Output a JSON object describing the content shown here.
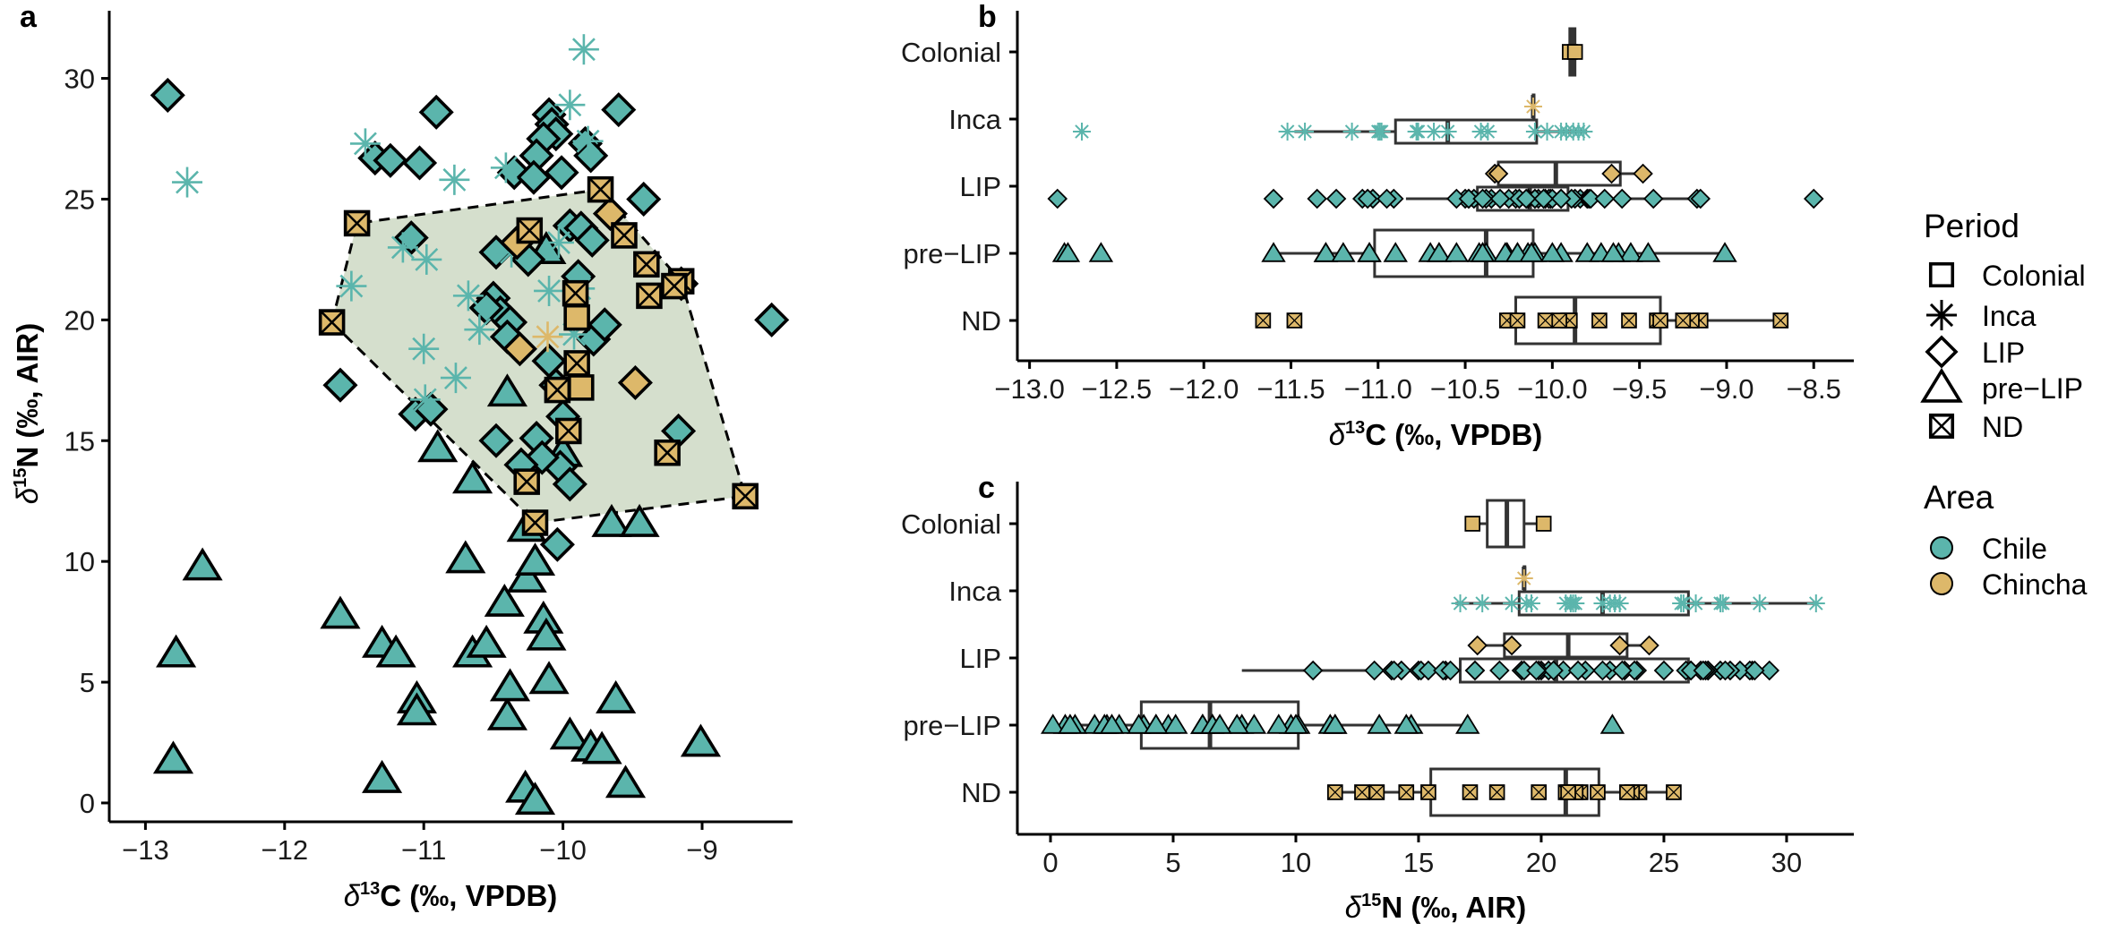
{
  "panel_labels": {
    "a": "a",
    "b": "b",
    "c": "c"
  },
  "colors": {
    "Chile": "#5BB5AC",
    "Chincha": "#DDB86A",
    "hull_fill": "#D5DFCD",
    "box_line": "#333333"
  },
  "legend": {
    "period_title": "Period",
    "period_items": [
      {
        "label": "Colonial",
        "shape": "square"
      },
      {
        "label": "Inca",
        "shape": "asterisk"
      },
      {
        "label": "LIP",
        "shape": "diamond"
      },
      {
        "label": "pre−LIP",
        "shape": "triangle"
      },
      {
        "label": "ND",
        "shape": "square-x"
      }
    ],
    "area_title": "Area",
    "area_items": [
      {
        "label": "Chile",
        "color": "#5BB5AC"
      },
      {
        "label": "Chincha",
        "color": "#DDB86A"
      }
    ]
  },
  "chart_data": [
    {
      "panel": "a",
      "type": "scatter",
      "xlabel": {
        "delta": "δ",
        "iso": "13",
        "rest": "C (‰, VPDB)"
      },
      "ylabel": {
        "delta": "δ",
        "iso": "15",
        "rest": "N (‰, AIR)"
      },
      "xlim": [
        -13.26,
        -8.35
      ],
      "ylim": [
        -0.78,
        32.8
      ],
      "xticks": [
        -13,
        -12,
        -11,
        -10,
        -9
      ],
      "xtick_labels": [
        "−13",
        "−12",
        "−11",
        "−10",
        "−9"
      ],
      "yticks": [
        0,
        5,
        10,
        15,
        20,
        25,
        30
      ],
      "ytick_labels": [
        "0",
        "5",
        "10",
        "15",
        "20",
        "25",
        "30"
      ],
      "grid": false,
      "overlay": "dashed convex hull around Chincha samples",
      "series": [
        {
          "period": "pre-LIP",
          "area": "Chile",
          "points": [
            [
              -12.8,
              1.8
            ],
            [
              -12.78,
              6.2
            ],
            [
              -12.59,
              9.8
            ],
            [
              -11.6,
              7.8
            ],
            [
              -11.3,
              1.0
            ],
            [
              -11.3,
              6.6
            ],
            [
              -11.2,
              6.2
            ],
            [
              -11.05,
              4.3
            ],
            [
              -11.05,
              3.8
            ],
            [
              -10.9,
              14.7
            ],
            [
              -10.65,
              13.4
            ],
            [
              -10.7,
              10.1
            ],
            [
              -10.65,
              6.2
            ],
            [
              -10.55,
              6.6
            ],
            [
              -10.4,
              3.6
            ],
            [
              -10.38,
              4.8
            ],
            [
              -10.42,
              8.3
            ],
            [
              -10.26,
              9.3
            ],
            [
              -10.26,
              11.4
            ],
            [
              -10.2,
              10.0
            ],
            [
              -10.14,
              7.6
            ],
            [
              -10.12,
              6.9
            ],
            [
              -10.1,
              5.1
            ],
            [
              -10.27,
              0.6
            ],
            [
              -10.2,
              0.1
            ],
            [
              -9.95,
              2.8
            ],
            [
              -9.8,
              2.3
            ],
            [
              -9.72,
              2.2
            ],
            [
              -9.62,
              4.3
            ],
            [
              -9.55,
              0.8
            ],
            [
              -9.01,
              2.5
            ],
            [
              -9.65,
              11.6
            ],
            [
              -9.45,
              11.6
            ],
            [
              -10.12,
              22.9
            ],
            [
              -10.4,
              17.0
            ],
            [
              -10.0,
              14.5
            ]
          ]
        },
        {
          "period": "LIP",
          "area": "Chile",
          "points": [
            [
              -12.84,
              29.3
            ],
            [
              -10.91,
              28.6
            ],
            [
              -10.1,
              28.5
            ],
            [
              -10.08,
              28.1
            ],
            [
              -10.05,
              27.7
            ],
            [
              -9.84,
              27.3
            ],
            [
              -9.8,
              26.8
            ],
            [
              -10.14,
              27.5
            ],
            [
              -10.19,
              26.8
            ],
            [
              -11.35,
              26.7
            ],
            [
              -11.03,
              26.5
            ],
            [
              -10.35,
              26.1
            ],
            [
              -10.21,
              25.9
            ],
            [
              -10.01,
              26.1
            ],
            [
              -9.42,
              25.0
            ],
            [
              -8.5,
              20.0
            ],
            [
              -11.09,
              23.4
            ],
            [
              -10.48,
              22.8
            ],
            [
              -10.25,
              22.5
            ],
            [
              -9.95,
              23.9
            ],
            [
              -9.87,
              23.8
            ],
            [
              -9.79,
              23.3
            ],
            [
              -9.89,
              21.8
            ],
            [
              -10.5,
              20.9
            ],
            [
              -10.45,
              20.3
            ],
            [
              -10.38,
              19.9
            ],
            [
              -10.55,
              20.5
            ],
            [
              -11.6,
              17.3
            ],
            [
              -9.78,
              19.2
            ],
            [
              -11.06,
              16.1
            ],
            [
              -10.48,
              15.0
            ],
            [
              -10.19,
              15.1
            ],
            [
              -9.17,
              15.4
            ],
            [
              -10.02,
              13.9
            ],
            [
              -10.04,
              10.7
            ],
            [
              -10.1,
              18.3
            ],
            [
              -10.0,
              16.0
            ],
            [
              -10.15,
              14.3
            ],
            [
              -10.3,
              14.0
            ],
            [
              -9.95,
              13.2
            ],
            [
              -9.6,
              28.7
            ],
            [
              -10.4,
              19.3
            ],
            [
              -9.7,
              19.8
            ],
            [
              -10.05,
              17.3
            ],
            [
              -9.15,
              21.5
            ],
            [
              -11.24,
              26.6
            ],
            [
              -10.95,
              16.3
            ]
          ]
        },
        {
          "period": "Inca",
          "area": "Chile",
          "points": [
            [
              -12.7,
              25.7
            ],
            [
              -9.85,
              31.2
            ],
            [
              -9.95,
              28.9
            ],
            [
              -11.42,
              27.3
            ],
            [
              -10.78,
              25.8
            ],
            [
              -10.41,
              26.3
            ],
            [
              -11.52,
              21.4
            ],
            [
              -11.15,
              23.0
            ],
            [
              -10.98,
              22.5
            ],
            [
              -10.68,
              21.0
            ],
            [
              -11.0,
              18.8
            ],
            [
              -10.99,
              16.7
            ],
            [
              -10.77,
              17.6
            ],
            [
              -9.88,
              21.3
            ],
            [
              -10.6,
              19.6
            ],
            [
              -10.37,
              22.8
            ],
            [
              -10.03,
              23.2
            ],
            [
              -9.92,
              19.4
            ],
            [
              -10.1,
              21.2
            ],
            [
              -9.82,
              27.4
            ]
          ]
        },
        {
          "period": "Inca",
          "area": "Chincha",
          "points": [
            [
              -10.11,
              19.3
            ]
          ]
        },
        {
          "period": "LIP",
          "area": "Chincha",
          "points": [
            [
              -10.33,
              23.2
            ],
            [
              -9.66,
              24.4
            ],
            [
              -10.31,
              18.8
            ],
            [
              -9.48,
              17.4
            ]
          ]
        },
        {
          "period": "Colonial",
          "area": "Chincha",
          "points": [
            [
              -9.9,
              20.1
            ],
            [
              -9.87,
              17.2
            ]
          ]
        },
        {
          "period": "ND",
          "area": "Chincha",
          "points": [
            [
              -11.48,
              24.0
            ],
            [
              -11.66,
              19.9
            ],
            [
              -10.24,
              23.7
            ],
            [
              -9.73,
              25.4
            ],
            [
              -9.56,
              23.5
            ],
            [
              -9.4,
              22.3
            ],
            [
              -9.38,
              21.0
            ],
            [
              -9.15,
              21.6
            ],
            [
              -9.2,
              21.4
            ],
            [
              -9.91,
              21.1
            ],
            [
              -9.9,
              18.2
            ],
            [
              -10.04,
              17.1
            ],
            [
              -9.96,
              15.4
            ],
            [
              -10.26,
              13.3
            ],
            [
              -10.2,
              11.6
            ],
            [
              -9.25,
              14.5
            ],
            [
              -8.69,
              12.7
            ]
          ]
        }
      ]
    },
    {
      "panel": "b",
      "type": "boxplot",
      "orientation": "horizontal",
      "variable": "d13C",
      "xlabel": {
        "delta": "δ",
        "iso": "13",
        "rest": "C (‰, VPDB)"
      },
      "xlim": [
        -13.07,
        -8.27
      ],
      "xticks": [
        -13,
        -12.5,
        -12,
        -11.5,
        -11,
        -10.5,
        -10,
        -9.5,
        -9,
        -8.5
      ],
      "xtick_labels": [
        "−13.0",
        "−12.5",
        "−12.0",
        "−11.5",
        "−11.0",
        "−10.5",
        "−10.0",
        "−9.5",
        "−9.0",
        "−8.5"
      ],
      "categories": [
        "Colonial",
        "Inca",
        "LIP",
        "pre−LIP",
        "ND"
      ],
      "category_keys": [
        "Colonial",
        "Inca",
        "LIP",
        "pre-LIP",
        "ND"
      ],
      "boxes": [
        {
          "period": "Colonial",
          "area": "Chincha",
          "q1": -9.9,
          "median": -9.885,
          "q3": -9.87,
          "whisker_low": -9.9,
          "whisker_high": -9.87
        },
        {
          "period": "Inca",
          "area": "Chincha",
          "q1": -10.11,
          "median": -10.11,
          "q3": -10.11,
          "whisker_low": -10.11,
          "whisker_high": -10.11
        },
        {
          "period": "Inca",
          "area": "Chile",
          "q1": -10.9,
          "median": -10.6,
          "q3": -10.09,
          "whisker_low": -11.48,
          "whisker_high": -9.8
        },
        {
          "period": "LIP",
          "area": "Chincha",
          "q1": -10.31,
          "median": -9.98,
          "q3": -9.61,
          "whisker_low": -10.33,
          "whisker_high": -9.48
        },
        {
          "period": "LIP",
          "area": "Chile",
          "q1": -10.43,
          "median": -10.13,
          "q3": -9.91,
          "whisker_low": -10.84,
          "whisker_high": -9.16
        },
        {
          "period": "pre-LIP",
          "area": "Chile",
          "q1": -11.02,
          "median": -10.38,
          "q3": -10.11,
          "whisker_low": -11.6,
          "whisker_high": -9.01
        },
        {
          "period": "ND",
          "area": "Chincha",
          "q1": -10.21,
          "median": -9.87,
          "q3": -9.38,
          "whisker_low": -10.24,
          "whisker_high": -8.69
        }
      ]
    },
    {
      "panel": "c",
      "type": "boxplot",
      "orientation": "horizontal",
      "variable": "d15N",
      "xlabel": {
        "delta": "δ",
        "iso": "15",
        "rest": "N (‰, AIR)"
      },
      "xlim": [
        -1.35,
        32.74
      ],
      "xticks": [
        0,
        5,
        10,
        15,
        20,
        25,
        30
      ],
      "xtick_labels": [
        "0",
        "5",
        "10",
        "15",
        "20",
        "25",
        "30"
      ],
      "categories": [
        "Colonial",
        "Inca",
        "LIP",
        "pre−LIP",
        "ND"
      ],
      "category_keys": [
        "Colonial",
        "Inca",
        "LIP",
        "pre-LIP",
        "ND"
      ],
      "boxes": [
        {
          "period": "Colonial",
          "area": "Chincha",
          "q1": 17.8,
          "median": 18.6,
          "q3": 19.3,
          "whisker_low": 17.2,
          "whisker_high": 20.1
        },
        {
          "period": "Inca",
          "area": "Chincha",
          "q1": 19.3,
          "median": 19.3,
          "q3": 19.3,
          "whisker_low": 19.3,
          "whisker_high": 19.3
        },
        {
          "period": "Inca",
          "area": "Chile",
          "q1": 19.1,
          "median": 22.5,
          "q3": 26.0,
          "whisker_low": 16.5,
          "whisker_high": 31.1
        },
        {
          "period": "LIP",
          "area": "Chincha",
          "q1": 18.5,
          "median": 21.1,
          "q3": 23.5,
          "whisker_low": 17.4,
          "whisker_high": 24.3
        },
        {
          "period": "LIP",
          "area": "Chile",
          "q1": 16.7,
          "median": 20.6,
          "q3": 26.0,
          "whisker_low": 7.8,
          "whisker_high": 29.3
        },
        {
          "period": "pre-LIP",
          "area": "Chile",
          "q1": 3.7,
          "median": 6.5,
          "q3": 10.1,
          "whisker_low": 0.2,
          "whisker_high": 16.9
        },
        {
          "period": "ND",
          "area": "Chincha",
          "q1": 15.5,
          "median": 21.0,
          "q3": 22.35,
          "whisker_low": 11.6,
          "whisker_high": 25.4
        }
      ]
    }
  ]
}
